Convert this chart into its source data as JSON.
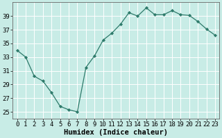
{
  "x": [
    0,
    1,
    2,
    3,
    4,
    5,
    6,
    7,
    8,
    9,
    10,
    11,
    12,
    13,
    14,
    15,
    16,
    17,
    18,
    19,
    20,
    21,
    22,
    23
  ],
  "y": [
    34,
    33,
    30.2,
    29.5,
    27.8,
    25.8,
    25.3,
    25,
    31.5,
    33.2,
    35.5,
    36.5,
    37.8,
    39.5,
    39,
    40.2,
    39.2,
    39.2,
    39.8,
    39.2,
    39.1,
    38.2,
    37.1,
    36.2
  ],
  "line_color": "#2d7a6a",
  "marker_color": "#2d7a6a",
  "bg_color": "#c8ece6",
  "grid_color": "#ffffff",
  "xlabel": "Humidex (Indice chaleur)",
  "xlim": [
    -0.5,
    23.5
  ],
  "ylim": [
    24.0,
    41.0
  ],
  "yticks": [
    25,
    27,
    29,
    31,
    33,
    35,
    37,
    39
  ],
  "xticks": [
    0,
    1,
    2,
    3,
    4,
    5,
    6,
    7,
    8,
    9,
    10,
    11,
    12,
    13,
    14,
    15,
    16,
    17,
    18,
    19,
    20,
    21,
    22,
    23
  ],
  "tick_fontsize": 6.5,
  "xlabel_fontsize": 7.5
}
